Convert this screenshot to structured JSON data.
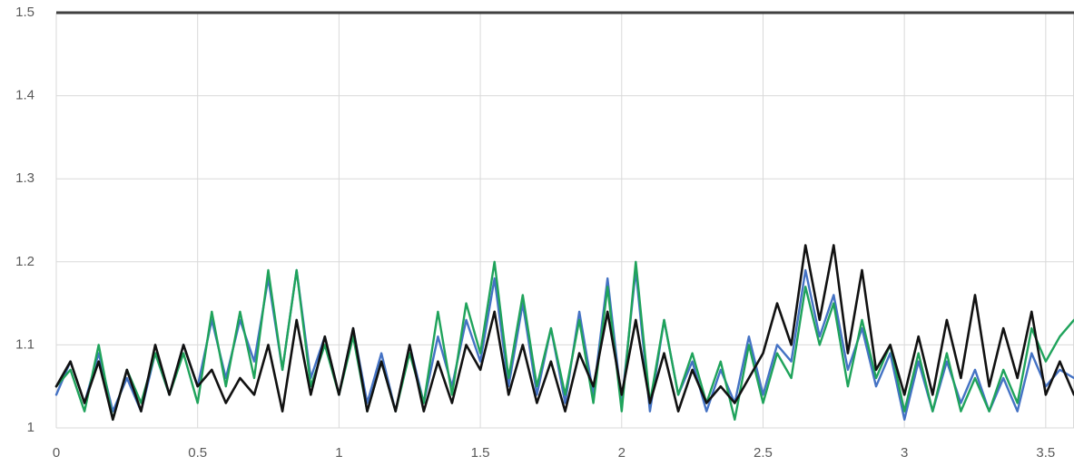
{
  "chart_data": {
    "type": "line",
    "title": "",
    "xlabel": "",
    "ylabel": "",
    "xlim": [
      0,
      3.6
    ],
    "ylim": [
      1,
      1.5
    ],
    "grid": true,
    "legend": "none",
    "x_ticks": [
      {
        "value": 0,
        "label": "0"
      },
      {
        "value": 0.5,
        "label": "0.5"
      },
      {
        "value": 1,
        "label": "1"
      },
      {
        "value": 1.5,
        "label": "1.5"
      },
      {
        "value": 2,
        "label": "2"
      },
      {
        "value": 2.5,
        "label": "2.5"
      },
      {
        "value": 3,
        "label": "3"
      },
      {
        "value": 3.5,
        "label": "3.5"
      }
    ],
    "y_ticks": [
      {
        "value": 1,
        "label": "1"
      },
      {
        "value": 1.1,
        "label": "1.1"
      },
      {
        "value": 1.2,
        "label": "1.2"
      },
      {
        "value": 1.3,
        "label": "1.3"
      },
      {
        "value": 1.4,
        "label": "1.4"
      },
      {
        "value": 1.5,
        "label": "1.5"
      }
    ],
    "reference_line": {
      "y": 1.5,
      "color": "#404040"
    },
    "x": [
      0,
      0.05,
      0.1,
      0.15,
      0.2,
      0.25,
      0.3,
      0.35,
      0.4,
      0.45,
      0.5,
      0.55,
      0.6,
      0.65,
      0.7,
      0.75,
      0.8,
      0.85,
      0.9,
      0.95,
      1,
      1.05,
      1.1,
      1.15,
      1.2,
      1.25,
      1.3,
      1.35,
      1.4,
      1.45,
      1.5,
      1.55,
      1.6,
      1.65,
      1.7,
      1.75,
      1.8,
      1.85,
      1.9,
      1.95,
      2,
      2.05,
      2.1,
      2.15,
      2.2,
      2.25,
      2.3,
      2.35,
      2.4,
      2.45,
      2.5,
      2.55,
      2.6,
      2.65,
      2.7,
      2.75,
      2.8,
      2.85,
      2.9,
      2.95,
      3,
      3.05,
      3.1,
      3.15,
      3.2,
      3.25,
      3.3,
      3.35,
      3.4,
      3.45,
      3.5,
      3.55,
      3.6
    ],
    "series": [
      {
        "color": "#4472C4",
        "values": [
          1.04,
          1.08,
          1.03,
          1.09,
          1.02,
          1.06,
          1.02,
          1.09,
          1.04,
          1.1,
          1.05,
          1.13,
          1.06,
          1.13,
          1.08,
          1.18,
          1.07,
          1.19,
          1.06,
          1.11,
          1.04,
          1.12,
          1.03,
          1.09,
          1.02,
          1.1,
          1.03,
          1.11,
          1.05,
          1.13,
          1.08,
          1.18,
          1.05,
          1.15,
          1.04,
          1.12,
          1.03,
          1.14,
          1.04,
          1.18,
          1.03,
          1.19,
          1.02,
          1.13,
          1.04,
          1.08,
          1.02,
          1.07,
          1.03,
          1.11,
          1.04,
          1.1,
          1.08,
          1.19,
          1.11,
          1.16,
          1.07,
          1.12,
          1.05,
          1.09,
          1.01,
          1.08,
          1.02,
          1.08,
          1.03,
          1.07,
          1.02,
          1.06,
          1.02,
          1.09,
          1.05,
          1.07,
          1.06
        ]
      },
      {
        "color": "#1FA35B",
        "values": [
          1.05,
          1.07,
          1.02,
          1.1,
          1.01,
          1.07,
          1.03,
          1.09,
          1.04,
          1.09,
          1.03,
          1.14,
          1.05,
          1.14,
          1.06,
          1.19,
          1.07,
          1.19,
          1.05,
          1.1,
          1.04,
          1.11,
          1.02,
          1.08,
          1.02,
          1.09,
          1.03,
          1.14,
          1.04,
          1.15,
          1.09,
          1.2,
          1.06,
          1.16,
          1.05,
          1.12,
          1.04,
          1.13,
          1.03,
          1.17,
          1.02,
          1.2,
          1.03,
          1.13,
          1.04,
          1.09,
          1.03,
          1.08,
          1.01,
          1.1,
          1.03,
          1.09,
          1.06,
          1.17,
          1.1,
          1.15,
          1.05,
          1.13,
          1.06,
          1.1,
          1.02,
          1.09,
          1.02,
          1.09,
          1.02,
          1.06,
          1.02,
          1.07,
          1.03,
          1.12,
          1.08,
          1.11,
          1.13
        ]
      },
      {
        "color": "#111111",
        "values": [
          1.05,
          1.08,
          1.03,
          1.08,
          1.01,
          1.07,
          1.02,
          1.1,
          1.04,
          1.1,
          1.05,
          1.07,
          1.03,
          1.06,
          1.04,
          1.1,
          1.02,
          1.13,
          1.04,
          1.11,
          1.04,
          1.12,
          1.02,
          1.08,
          1.02,
          1.1,
          1.02,
          1.08,
          1.03,
          1.1,
          1.07,
          1.14,
          1.04,
          1.1,
          1.03,
          1.08,
          1.02,
          1.09,
          1.05,
          1.14,
          1.04,
          1.13,
          1.03,
          1.09,
          1.02,
          1.07,
          1.03,
          1.05,
          1.03,
          1.06,
          1.09,
          1.15,
          1.1,
          1.22,
          1.13,
          1.22,
          1.09,
          1.19,
          1.07,
          1.1,
          1.04,
          1.11,
          1.04,
          1.13,
          1.06,
          1.16,
          1.05,
          1.12,
          1.06,
          1.14,
          1.04,
          1.08,
          1.04
        ]
      }
    ]
  }
}
